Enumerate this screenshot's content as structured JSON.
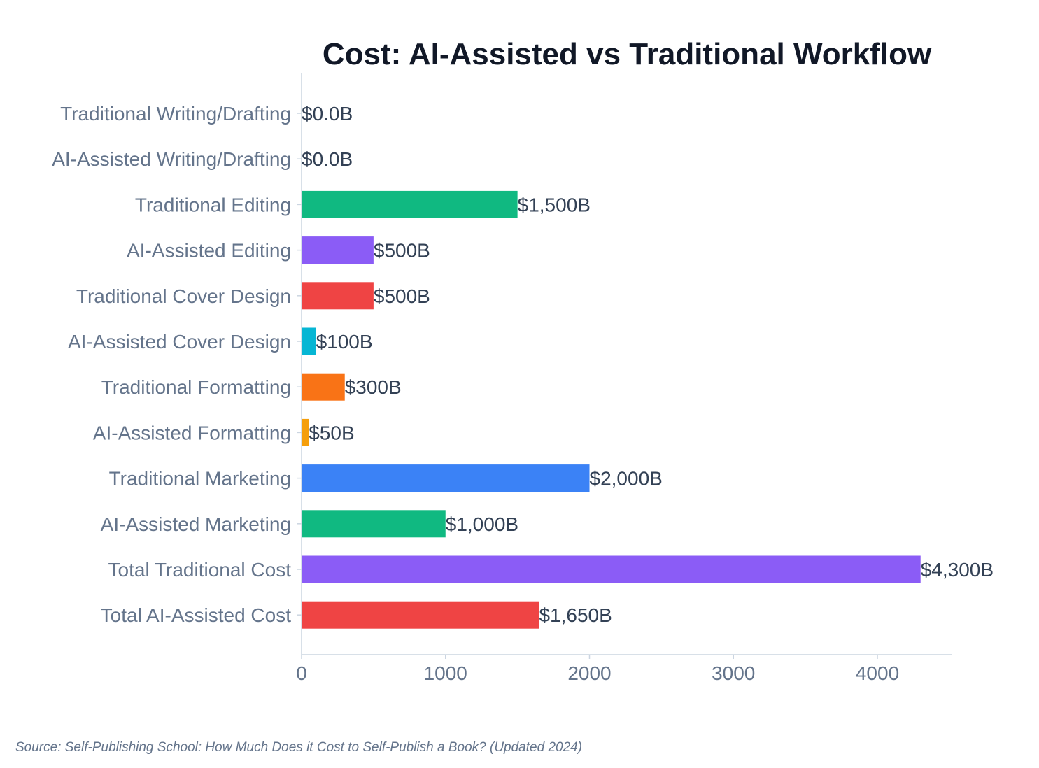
{
  "chart_data": {
    "type": "bar",
    "orientation": "horizontal",
    "title": "Cost: AI-Assisted vs Traditional Workflow",
    "xlabel": "",
    "ylabel": "",
    "xlim": [
      0,
      4520
    ],
    "xticks": [
      0,
      1000,
      2000,
      3000,
      4000
    ],
    "categories": [
      "Traditional Writing/Drafting",
      "AI-Assisted Writing/Drafting",
      "Traditional Editing",
      "AI-Assisted Editing",
      "Traditional Cover Design",
      "AI-Assisted Cover Design",
      "Traditional Formatting",
      "AI-Assisted Formatting",
      "Traditional Marketing",
      "AI-Assisted Marketing",
      "Total Traditional Cost",
      "Total AI-Assisted Cost"
    ],
    "values": [
      0,
      0,
      1500,
      500,
      500,
      100,
      300,
      50,
      2000,
      1000,
      4300,
      1650
    ],
    "data_labels": [
      "$0.0B",
      "$0.0B",
      "$1,500B",
      "$500B",
      "$500B",
      "$100B",
      "$300B",
      "$50B",
      "$2,000B",
      "$1,000B",
      "$4,300B",
      "$1,650B"
    ],
    "colors": [
      "#3b82f6",
      "#10b981",
      "#10b981",
      "#8b5cf6",
      "#ef4444",
      "#06b6d4",
      "#f97316",
      "#f59e0b",
      "#3b82f6",
      "#10b981",
      "#8b5cf6",
      "#ef4444"
    ],
    "grid": false,
    "legend": "none"
  },
  "source_note": "Source: Self-Publishing School: How Much Does it Cost to Self-Publish a Book? (Updated 2024)"
}
